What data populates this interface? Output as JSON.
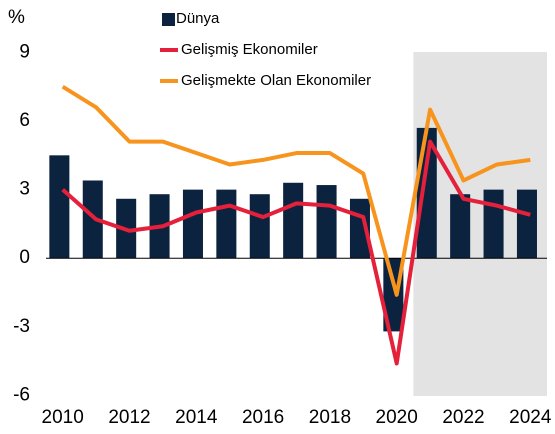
{
  "chart_data": {
    "type": "bar_line",
    "y_label": "%",
    "x": [
      2010,
      2011,
      2012,
      2013,
      2014,
      2015,
      2016,
      2017,
      2018,
      2019,
      2020,
      2021,
      2022,
      2023,
      2024
    ],
    "xlim": [
      2009.5,
      2024.5
    ],
    "xticks": [
      2010,
      2012,
      2014,
      2016,
      2018,
      2020,
      2022,
      2024
    ],
    "ylim": [
      -6.2,
      9.5
    ],
    "yticks": [
      -6,
      -3,
      0,
      3,
      6,
      9
    ],
    "shaded_xrange": [
      2020.5,
      2024.5
    ],
    "shade_color": "#e3e3e3",
    "series": [
      {
        "name": "Dünya",
        "type": "bar",
        "color": "#0c2340",
        "values": [
          4.5,
          3.4,
          2.6,
          2.8,
          3.0,
          3.0,
          2.8,
          3.3,
          3.2,
          2.6,
          -3.2,
          5.7,
          2.8,
          3.0,
          3.0
        ]
      },
      {
        "name": "Gelişmiş Ekonomiler",
        "type": "line",
        "color": "#e4203a",
        "values": [
          3.0,
          1.7,
          1.2,
          1.4,
          2.0,
          2.3,
          1.8,
          2.4,
          2.3,
          1.8,
          -4.6,
          5.1,
          2.6,
          2.3,
          1.9
        ]
      },
      {
        "name": "Gelişmekte Olan Ekonomiler",
        "type": "line",
        "color": "#f7941d",
        "values": [
          7.5,
          6.6,
          5.1,
          5.1,
          4.6,
          4.1,
          4.3,
          4.6,
          4.6,
          3.7,
          -1.6,
          6.5,
          3.4,
          4.1,
          4.3
        ]
      }
    ]
  }
}
